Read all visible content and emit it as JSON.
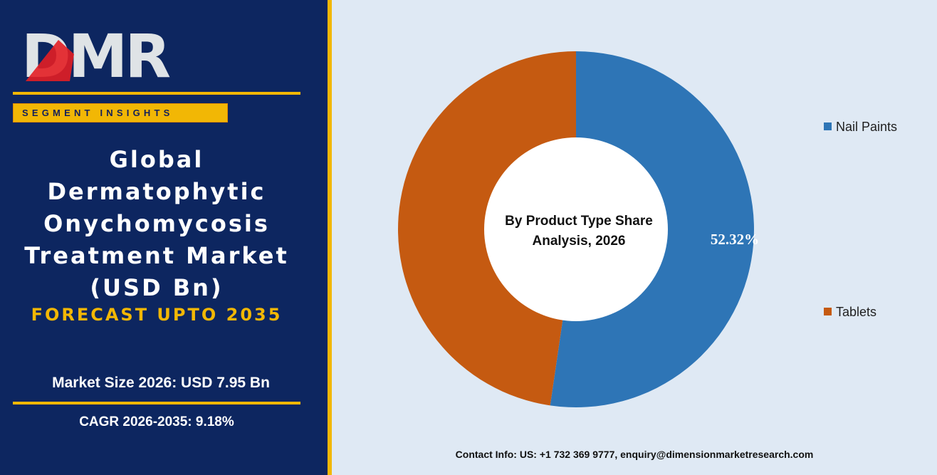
{
  "brand": {
    "logo_text": "DMR",
    "segment_label": "SEGMENT INSIGHTS"
  },
  "report": {
    "title": "Global\nDermatophytic\nOnychomycosis\nTreatment  Market\n(USD Bn)",
    "forecast": "FORECAST UPTO 2035",
    "market_size": "Market Size 2026: USD 7.95 Bn",
    "cagr": "CAGR 2026-2035: 9.18%"
  },
  "chart_data": {
    "type": "pie",
    "donut": true,
    "title": "By Product Type Share Analysis, 2026",
    "title_lines": [
      "By Product Type Share",
      "Analysis, 2026"
    ],
    "categories": [
      "Nail Paints",
      "Tablets"
    ],
    "values": [
      52.32,
      47.68
    ],
    "data_labels": [
      "52.32%",
      ""
    ],
    "legend_position": "right",
    "colors": [
      "#2e75b6",
      "#c55a11"
    ]
  },
  "footer": {
    "contact": "Contact Info: US: +1 732 369 9777, enquiry@dimensionmarketresearch.com"
  },
  "colors": {
    "panel_bg": "#0d2660",
    "accent": "#f2b705",
    "chart_bg": "#dfe9f4",
    "logo_red": "#e31e24"
  }
}
